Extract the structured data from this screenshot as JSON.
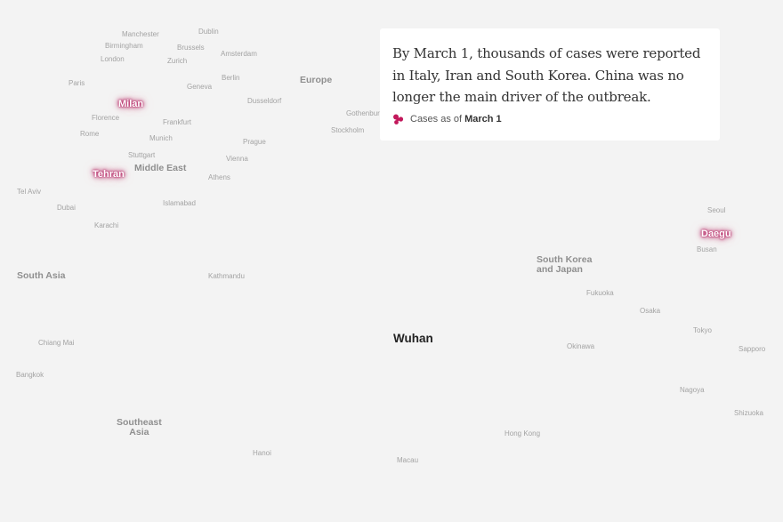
{
  "map": {
    "cities": [
      "Manchester",
      "Dublin",
      "Birmingham",
      "Brussels",
      "London",
      "Zurich",
      "Amsterdam",
      "Paris",
      "Berlin",
      "Geneva",
      "Dusseldorf",
      "Florence",
      "Frankfurt",
      "Gothenburg",
      "Rome",
      "Munich",
      "Stockholm",
      "Prague",
      "Stuttgart",
      "Vienna",
      "Athens",
      "Tel Aviv",
      "Islamabad",
      "Dubai",
      "Karachi",
      "Seoul",
      "Busan",
      "Kathmandu",
      "Fukuoka",
      "Osaka",
      "Tokyo",
      "Chiang Mai",
      "Okinawa",
      "Sapporo",
      "Bangkok",
      "Nagoya",
      "Shizuoka",
      "Hong Kong",
      "Hanoi",
      "Macau"
    ],
    "regions": {
      "europe": "Europe",
      "middle_east": "Middle East",
      "south_asia": "South Asia",
      "south_korea_japan": "South Korea\nand Japan",
      "southeast_asia": "Southeast\nAsia"
    },
    "hotspots": [
      "Milan",
      "Tehran",
      "Daegu"
    ],
    "epicenter": "Wuhan"
  },
  "card": {
    "text": "By March 1, thousands of cases were reported in Italy, Iran and South Korea. China was no longer the main driver of the outbreak.",
    "legend_prefix": "Cases as of",
    "legend_date": "March 1",
    "legend_icon": "virus-cluster-icon",
    "legend_color": "#c2185b"
  }
}
